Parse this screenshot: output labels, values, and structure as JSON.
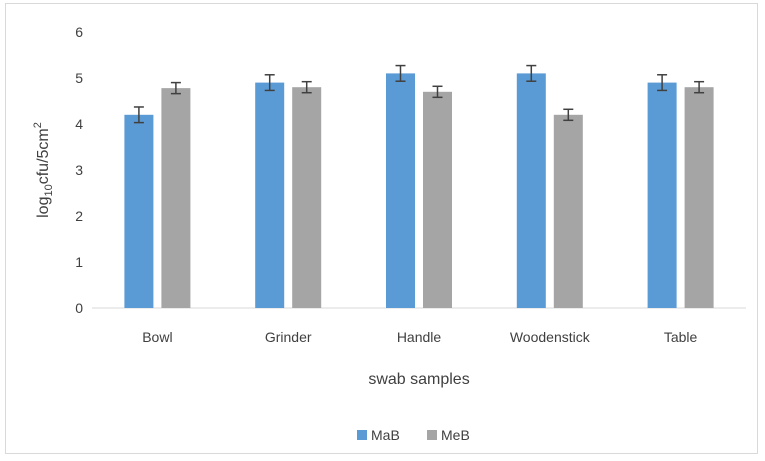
{
  "chart_data": {
    "type": "bar",
    "categories": [
      "Bowl",
      "Grinder",
      "Handle",
      "Woodenstick",
      "Table"
    ],
    "series": [
      {
        "name": "MaB",
        "values": [
          4.2,
          4.9,
          5.1,
          5.1,
          4.9
        ],
        "errors": [
          0.17,
          0.17,
          0.17,
          0.17,
          0.17
        ],
        "color": "#5b9bd5"
      },
      {
        "name": "MeB",
        "values": [
          4.78,
          4.8,
          4.7,
          4.2,
          4.8
        ],
        "errors": [
          0.12,
          0.12,
          0.12,
          0.12,
          0.12
        ],
        "color": "#a5a5a5"
      }
    ],
    "ylim": [
      0,
      6
    ],
    "yticks": [
      0,
      1,
      2,
      3,
      4,
      5,
      6
    ],
    "ylabel": {
      "base": "log",
      "sub": "10",
      "mid": "cfu/5cm",
      "sup": "2"
    },
    "xlabel": "swab samples",
    "legend_position": "bottom",
    "grid": false
  }
}
